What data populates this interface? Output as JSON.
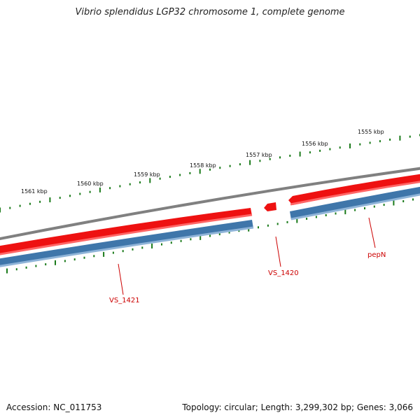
{
  "title": "Vibrio splendidus LGP32 chromosome 1, complete genome",
  "accession_text": "Accession: NC_011753",
  "summary_text": "Topology: circular; Length: 3,299,302 bp; Genes: 3,066",
  "colors": {
    "backbone": "#808080",
    "forward_strand": "#ee1111",
    "forward_strand_edge": "#ff6666",
    "reverse_strand": "#3f76aa",
    "reverse_strand_edge": "#8fb4d8",
    "ticks": "#1a7a1a",
    "gene_label": "#cc0000"
  },
  "scale": {
    "unit": "kbp",
    "labels": [
      {
        "kbp": 1555,
        "text": "1555 kbp"
      },
      {
        "kbp": 1556,
        "text": "1556 kbp"
      },
      {
        "kbp": 1557,
        "text": "1557 kbp"
      },
      {
        "kbp": 1558,
        "text": "1558 kbp"
      },
      {
        "kbp": 1559,
        "text": "1559 kbp"
      },
      {
        "kbp": 1560,
        "text": "1560 kbp"
      },
      {
        "kbp": 1561,
        "text": "1561 kbp"
      }
    ]
  },
  "genes": [
    {
      "label": "VS_1421",
      "strand": "reverse"
    },
    {
      "label": "VS_1420",
      "strand": "forward"
    },
    {
      "label": "pepN",
      "strand": "reverse"
    }
  ]
}
